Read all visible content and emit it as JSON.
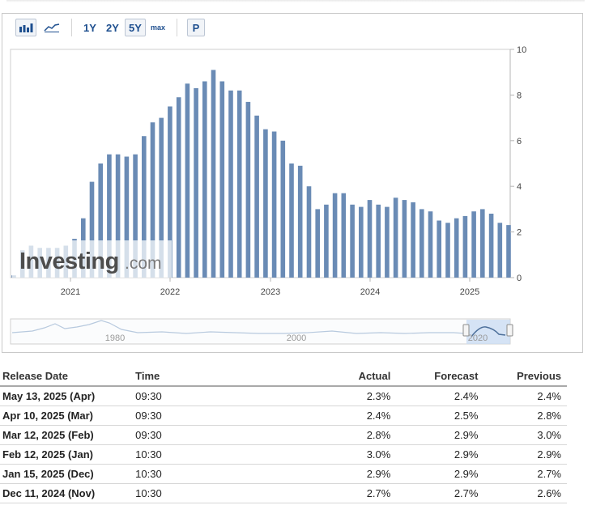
{
  "toolbar": {
    "buttons": [
      "1Y",
      "2Y",
      "5Y",
      "max",
      "P"
    ],
    "active": "5Y",
    "icons": [
      "bar-chart-icon",
      "line-chart-icon"
    ]
  },
  "brand": {
    "logo_text": "Investing",
    "logo_suffix": ".com"
  },
  "colors": {
    "bar": "#6a8bb5",
    "actual_negative": "#ee1c25",
    "actual_positive": "#0ea600",
    "accent": "#1e4f8f"
  },
  "chart_data": {
    "type": "bar",
    "ylim": [
      0,
      10
    ],
    "y_ticks": [
      "0",
      "2",
      "4",
      "6",
      "8",
      "10"
    ],
    "x_ticks": [
      "2021",
      "2022",
      "2023",
      "2024",
      "2025"
    ],
    "values": [
      0.1,
      1.2,
      1.4,
      1.3,
      1.3,
      1.3,
      1.4,
      1.7,
      2.6,
      4.2,
      5.0,
      5.4,
      5.4,
      5.3,
      5.4,
      6.2,
      6.8,
      7.0,
      7.5,
      7.9,
      8.5,
      8.3,
      8.6,
      9.1,
      8.6,
      8.2,
      8.2,
      7.7,
      7.1,
      6.5,
      6.4,
      6.0,
      5.0,
      4.9,
      4.0,
      3.0,
      3.2,
      3.7,
      3.7,
      3.2,
      3.1,
      3.4,
      3.2,
      3.1,
      3.5,
      3.4,
      3.3,
      3.0,
      2.9,
      2.5,
      2.4,
      2.6,
      2.7,
      2.9,
      3.0,
      2.8,
      2.4,
      2.3
    ],
    "navigator_ticks": [
      "1980",
      "2000",
      "2020"
    ]
  },
  "table": {
    "headers": [
      "Release Date",
      "Time",
      "Actual",
      "Forecast",
      "Previous"
    ],
    "rows": [
      {
        "date": "May 13, 2025 (Apr)",
        "time": "09:30",
        "actual": "2.3%",
        "actual_color": "red",
        "forecast": "2.4%",
        "previous": "2.4%"
      },
      {
        "date": "Apr 10, 2025 (Mar)",
        "time": "09:30",
        "actual": "2.4%",
        "actual_color": "red",
        "forecast": "2.5%",
        "previous": "2.8%"
      },
      {
        "date": "Mar 12, 2025 (Feb)",
        "time": "09:30",
        "actual": "2.8%",
        "actual_color": "red",
        "forecast": "2.9%",
        "previous": "3.0%"
      },
      {
        "date": "Feb 12, 2025 (Jan)",
        "time": "10:30",
        "actual": "3.0%",
        "actual_color": "green",
        "forecast": "2.9%",
        "previous": "2.9%"
      },
      {
        "date": "Jan 15, 2025 (Dec)",
        "time": "10:30",
        "actual": "2.9%",
        "actual_color": "",
        "forecast": "2.9%",
        "previous": "2.7%"
      },
      {
        "date": "Dec 11, 2024 (Nov)",
        "time": "10:30",
        "actual": "2.7%",
        "actual_color": "",
        "forecast": "2.7%",
        "previous": "2.6%"
      }
    ]
  }
}
